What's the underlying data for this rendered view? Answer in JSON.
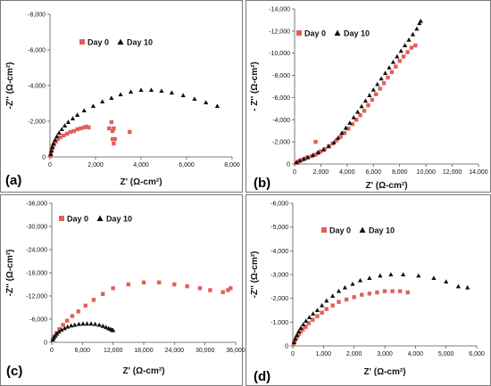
{
  "chart_data": [
    {
      "type": "scatter",
      "panel_label": "(a)",
      "xlabel": "Z' (Ω-cm²)",
      "ylabel": "-Z'' (Ω-cm²)",
      "xlim": [
        0,
        8000
      ],
      "ylim": [
        0,
        -8000
      ],
      "xticks": [
        "0",
        "2,000",
        "4,000",
        "6,000",
        "8,000"
      ],
      "yticks": [
        "0",
        "-2,000",
        "-4,000",
        "-6,000",
        "-8,000"
      ],
      "legend": [
        "Day 0",
        "Day 10"
      ],
      "series": [
        {
          "name": "Day 0",
          "marker": "square",
          "color": "#e0605a",
          "x": [
            20,
            40,
            60,
            90,
            120,
            180,
            250,
            350,
            450,
            600,
            750,
            900,
            1050,
            1200,
            1350,
            1500,
            1600,
            1700,
            2600,
            2700,
            2750,
            2800,
            2800,
            2850,
            2750,
            3500
          ],
          "y": [
            -50,
            -200,
            -350,
            -450,
            -550,
            -700,
            -850,
            -1000,
            -1100,
            -1200,
            -1300,
            -1400,
            -1450,
            -1550,
            -1600,
            -1650,
            -1700,
            -1650,
            -1600,
            -1950,
            -1000,
            -750,
            -1600,
            -1000,
            -1450,
            -1400
          ]
        },
        {
          "name": "Day 10",
          "marker": "triangle",
          "color": "#111111",
          "x": [
            30,
            60,
            100,
            150,
            220,
            300,
            400,
            520,
            650,
            800,
            1000,
            1200,
            1500,
            1900,
            2300,
            2700,
            3100,
            3550,
            4000,
            4450,
            4900,
            5350,
            5850,
            6350,
            6850,
            7350
          ],
          "y": [
            -150,
            -350,
            -550,
            -750,
            -950,
            -1150,
            -1350,
            -1550,
            -1750,
            -1950,
            -2150,
            -2350,
            -2600,
            -2850,
            -3100,
            -3300,
            -3500,
            -3650,
            -3750,
            -3750,
            -3700,
            -3600,
            -3450,
            -3250,
            -3050,
            -2850
          ]
        }
      ]
    },
    {
      "type": "scatter",
      "panel_label": "(b)",
      "xlabel": "Z' (Ω-cm²)",
      "ylabel": "- Z'' (Ω-cm²)",
      "xlim": [
        0,
        14000
      ],
      "ylim": [
        0,
        -14000
      ],
      "xticks": [
        "0",
        "2,000",
        "4,000",
        "6,000",
        "8,000",
        "10,000",
        "12,000",
        "14,000"
      ],
      "yticks": [
        "0",
        "-2,000",
        "-4,000",
        "-6,000",
        "-8,000",
        "-10,000",
        "-12,000",
        "-14,000"
      ],
      "legend": [
        "Day 0",
        "Day 10"
      ],
      "series": [
        {
          "name": "Day 0",
          "marker": "square",
          "color": "#e0605a",
          "x": [
            100,
            250,
            400,
            600,
            800,
            1000,
            1300,
            1600,
            1800,
            2000,
            2300,
            2600,
            2900,
            3200,
            3500,
            3800,
            4100,
            4400,
            4700,
            5000,
            5300,
            5600,
            5900,
            6200,
            6500,
            6800,
            7100,
            7400,
            7700,
            8000,
            8300,
            8600,
            8900,
            9200,
            1600
          ],
          "y": [
            -100,
            -200,
            -300,
            -400,
            -500,
            -600,
            -700,
            -850,
            -1000,
            -1150,
            -1350,
            -1600,
            -1850,
            -2150,
            -2450,
            -2800,
            -3200,
            -3600,
            -4000,
            -4400,
            -4800,
            -5300,
            -5800,
            -6300,
            -6800,
            -7300,
            -7800,
            -8300,
            -8800,
            -9300,
            -9700,
            -10100,
            -10500,
            -10700,
            -2000
          ]
        },
        {
          "name": "Day 10",
          "marker": "triangle",
          "color": "#111111",
          "x": [
            150,
            400,
            700,
            1000,
            1400,
            1800,
            2200,
            2600,
            3000,
            3300,
            3600,
            3900,
            4200,
            4500,
            4800,
            5100,
            5400,
            5700,
            6000,
            6300,
            6600,
            6900,
            7200,
            7500,
            7800,
            8100,
            8400,
            8700,
            9000,
            9300,
            9500,
            9600
          ],
          "y": [
            -150,
            -300,
            -450,
            -600,
            -800,
            -1050,
            -1300,
            -1600,
            -1950,
            -2350,
            -2800,
            -3250,
            -3700,
            -4200,
            -4700,
            -5200,
            -5700,
            -6200,
            -6700,
            -7200,
            -7700,
            -8200,
            -8700,
            -9200,
            -9700,
            -10200,
            -10700,
            -11200,
            -11700,
            -12200,
            -12700,
            -12900
          ]
        }
      ]
    },
    {
      "type": "scatter",
      "panel_label": "(c)",
      "xlabel": "Z' (Ω-cm²)",
      "ylabel": "-Z'' (Ω-cm²)",
      "xlim": [
        0,
        36000
      ],
      "ylim": [
        0,
        -36000
      ],
      "xticks": [
        "0",
        "6,000",
        "12,000",
        "18,000",
        "24,000",
        "30,000",
        "36,000"
      ],
      "yticks": [
        "0",
        "-6,000",
        "-12,000",
        "-18,000",
        "-24,000",
        "-30,000",
        "-36,000"
      ],
      "legend": [
        "Day 0",
        "Day 10"
      ],
      "series": [
        {
          "name": "Day 0",
          "marker": "square",
          "color": "#e0605a",
          "x": [
            200,
            500,
            900,
            1500,
            2200,
            3000,
            4000,
            5200,
            6600,
            8200,
            10000,
            12000,
            15000,
            18000,
            21000,
            24000,
            26500,
            29000,
            31000,
            33500,
            34500,
            35000
          ],
          "y": [
            -700,
            -1500,
            -2400,
            -3400,
            -4500,
            -5600,
            -6800,
            -8000,
            -9500,
            -11000,
            -12500,
            -14000,
            -15000,
            -15500,
            -15500,
            -15000,
            -14500,
            -14000,
            -13500,
            -13000,
            -13500,
            -14000
          ]
        },
        {
          "name": "Day 10",
          "marker": "triangle",
          "color": "#111111",
          "x": [
            200,
            400,
            700,
            1000,
            1400,
            1900,
            2500,
            3100,
            3800,
            4500,
            5300,
            6100,
            6900,
            7700,
            8500,
            9300,
            10000,
            10600,
            11100,
            11500,
            11800,
            12000
          ],
          "y": [
            -700,
            -1200,
            -1700,
            -2200,
            -2700,
            -3200,
            -3600,
            -4000,
            -4300,
            -4500,
            -4700,
            -4800,
            -4800,
            -4800,
            -4700,
            -4500,
            -4200,
            -3900,
            -3600,
            -3400,
            -3200,
            -3100
          ]
        }
      ]
    },
    {
      "type": "scatter",
      "panel_label": "(d)",
      "xlabel": "Z' (Ω-cm²)",
      "ylabel": "-Z'' (Ω-cm²)",
      "xlim": [
        0,
        6000
      ],
      "ylim": [
        0,
        -6000
      ],
      "xticks": [
        "0",
        "1,000",
        "2,000",
        "3,000",
        "4,000",
        "5,000",
        "6,000"
      ],
      "yticks": [
        "0",
        "-1,000",
        "-2,000",
        "-3,000",
        "-4,000",
        "-5,000",
        "-6,000"
      ],
      "legend": [
        "Day 0",
        "Day 10"
      ],
      "series": [
        {
          "name": "Day 0",
          "marker": "square",
          "color": "#e0605a",
          "x": [
            30,
            60,
            100,
            150,
            200,
            260,
            330,
            420,
            520,
            650,
            800,
            950,
            1100,
            1300,
            1500,
            1750,
            2000,
            2250,
            2500,
            2750,
            3000,
            3250,
            3500,
            3750
          ],
          "y": [
            -100,
            -200,
            -300,
            -400,
            -500,
            -600,
            -700,
            -800,
            -950,
            -1100,
            -1250,
            -1400,
            -1550,
            -1700,
            -1850,
            -1950,
            -2050,
            -2150,
            -2200,
            -2250,
            -2300,
            -2300,
            -2300,
            -2250
          ]
        },
        {
          "name": "Day 10",
          "marker": "triangle",
          "color": "#111111",
          "x": [
            40,
            80,
            130,
            190,
            260,
            340,
            430,
            540,
            660,
            800,
            950,
            1100,
            1300,
            1500,
            1700,
            1950,
            2200,
            2500,
            2850,
            3200,
            3600,
            4100,
            4600,
            5000,
            5400,
            5700
          ],
          "y": [
            -150,
            -300,
            -450,
            -600,
            -750,
            -900,
            -1050,
            -1200,
            -1350,
            -1500,
            -1700,
            -1900,
            -2100,
            -2300,
            -2450,
            -2600,
            -2750,
            -2850,
            -2950,
            -3000,
            -3000,
            -2950,
            -2850,
            -2700,
            -2500,
            -2450
          ]
        }
      ]
    }
  ]
}
